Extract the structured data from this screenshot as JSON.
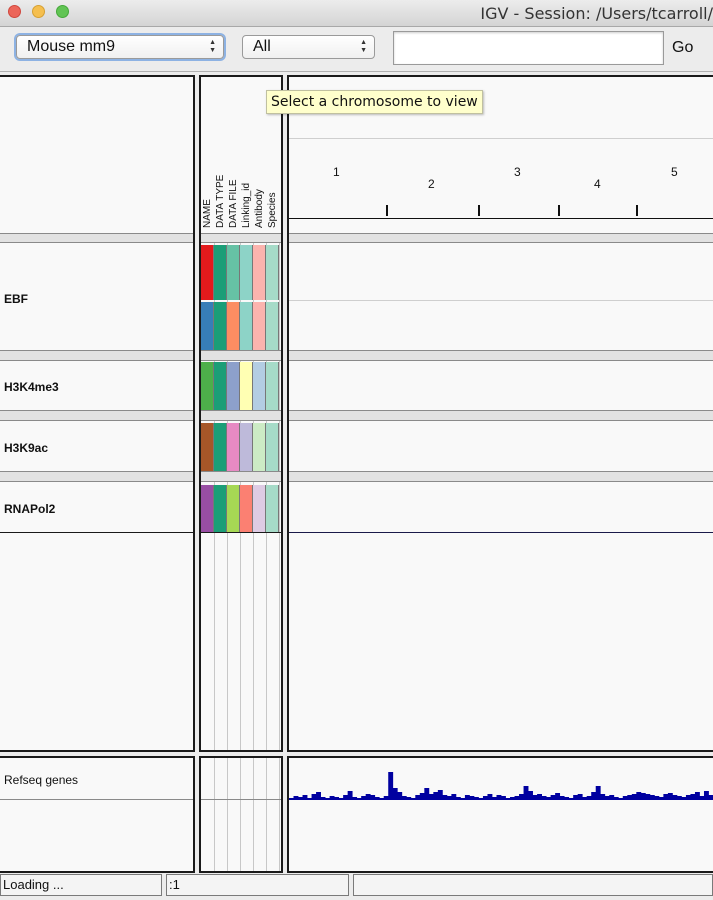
{
  "window": {
    "title": "IGV - Session: /Users/tcarroll/"
  },
  "toolbar": {
    "genome_select": "Mouse mm9",
    "chromosome_select": "All",
    "locus_input": "",
    "go_label": "Go"
  },
  "tooltip": "Select a chromosome to view",
  "attribute_headers": [
    "NAME",
    "DATA TYPE",
    "DATA FILE",
    "Linking_id",
    "Antibody",
    "Species"
  ],
  "ruler": {
    "chromosomes": [
      "1",
      "2",
      "3",
      "4",
      "5"
    ]
  },
  "tracks": [
    {
      "name": "EBF",
      "colors": [
        [
          "#e31a1c",
          "#1b9e77",
          "#66c2a5",
          "#8dd3c7",
          "#fbb4ae",
          "#a6dbc8"
        ],
        [
          "#377eb8",
          "#1b9e77",
          "#fc8d62",
          "#8dd3c7",
          "#fbb4ae",
          "#a6dbc8"
        ]
      ]
    },
    {
      "name": "H3K4me3",
      "colors": [
        [
          "#4daf4a",
          "#1b9e77",
          "#8da0cb",
          "#ffffb3",
          "#b3cde3",
          "#a6dbc8"
        ]
      ]
    },
    {
      "name": "H3K9ac",
      "colors": [
        [
          "#a65628",
          "#1b9e77",
          "#e78ac3",
          "#bebada",
          "#ccebc5",
          "#a6dbc8"
        ]
      ]
    },
    {
      "name": "RNAPol2",
      "colors": [
        [
          "#984ea3",
          "#1b9e77",
          "#a6d854",
          "#fb8072",
          "#decbe4",
          "#a6dbc8"
        ]
      ]
    }
  ],
  "feature_track": {
    "name": "Refseq genes",
    "color": "#0000a0"
  },
  "status": {
    "message": "Loading ...",
    "position": ":1",
    "extra": ""
  }
}
